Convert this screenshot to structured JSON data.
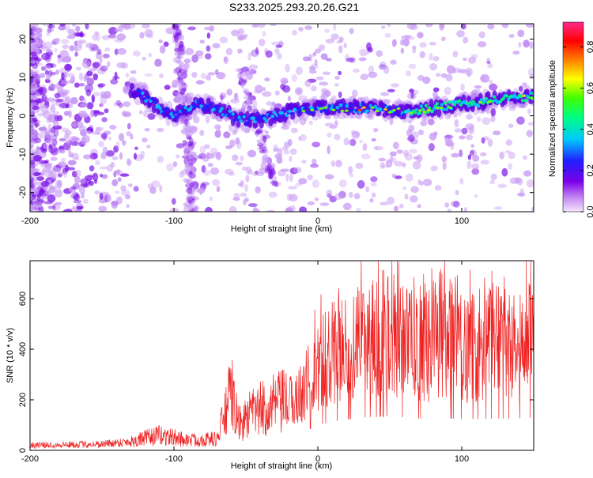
{
  "title": "S233.2025.293.20.26.G21",
  "chart_data": [
    {
      "type": "heatmap",
      "xlabel": "Height of straight line (km)",
      "ylabel": "Frequency (Hz)",
      "xlim": [
        -200,
        150
      ],
      "ylim": [
        -25,
        24
      ],
      "xticks": [
        -200,
        -100,
        0,
        100
      ],
      "yticks": [
        -20,
        -10,
        0,
        10,
        20
      ],
      "colorbar": {
        "label": "Normalized spectral amplitude",
        "range": [
          0.0,
          0.92
        ],
        "ticks": [
          "0.0",
          "0.2",
          "0.4",
          "0.6",
          "0.8"
        ]
      },
      "ridge": [
        {
          "x": -130,
          "y": 7
        },
        {
          "x": -120,
          "y": 5
        },
        {
          "x": -110,
          "y": 2
        },
        {
          "x": -100,
          "y": 0
        },
        {
          "x": -85,
          "y": 3
        },
        {
          "x": -70,
          "y": 2
        },
        {
          "x": -55,
          "y": -1
        },
        {
          "x": -40,
          "y": -1
        },
        {
          "x": -20,
          "y": 1
        },
        {
          "x": 0,
          "y": 2
        },
        {
          "x": 20,
          "y": 2
        },
        {
          "x": 40,
          "y": 2
        },
        {
          "x": 60,
          "y": 1
        },
        {
          "x": 80,
          "y": 2
        },
        {
          "x": 100,
          "y": 3
        },
        {
          "x": 120,
          "y": 4
        },
        {
          "x": 150,
          "y": 5
        }
      ]
    },
    {
      "type": "line",
      "xlabel": "Height of straight line (km)",
      "ylabel": "SNR (10 * v/v)",
      "xlim": [
        -200,
        150
      ],
      "ylim": [
        0,
        750
      ],
      "xticks": [
        -200,
        -100,
        0,
        100
      ],
      "yticks": [
        0,
        200,
        400,
        600
      ],
      "color": "#ee2222",
      "series": [
        {
          "name": "SNR",
          "x": [
            -200,
            -150,
            -130,
            -110,
            -90,
            -70,
            -60,
            -55,
            -45,
            -30,
            -15,
            0,
            10,
            30,
            50,
            70,
            90,
            110,
            130,
            150
          ],
          "y": [
            20,
            25,
            35,
            60,
            40,
            45,
            230,
            100,
            150,
            180,
            200,
            330,
            380,
            430,
            450,
            420,
            420,
            410,
            420,
            430
          ]
        }
      ]
    }
  ]
}
